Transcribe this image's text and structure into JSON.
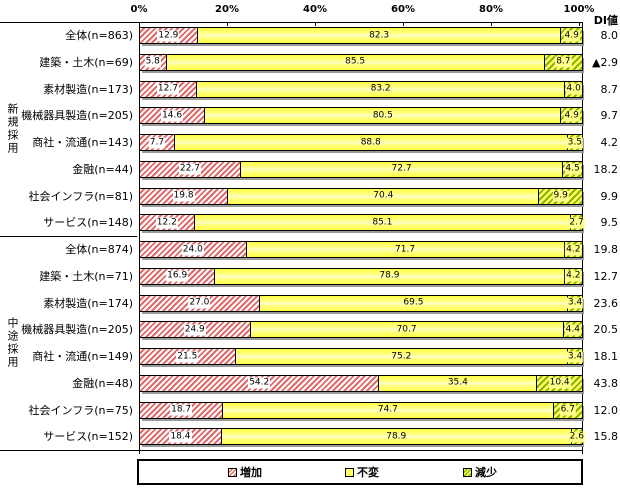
{
  "axis": {
    "ticks": [
      "0%",
      "20%",
      "40%",
      "60%",
      "80%",
      "100%"
    ],
    "di_header": "DI値"
  },
  "legend": {
    "items": [
      {
        "label": "増加",
        "swatch": "increase-hatch-pink"
      },
      {
        "label": "不変",
        "swatch": "unchanged-solid-yellow"
      },
      {
        "label": "減少",
        "swatch": "decrease-hatch-green"
      }
    ]
  },
  "colors": {
    "increase_hatch": "#e06a6a",
    "unchanged_fill": "#ffff66",
    "decrease_hatch": "#88b300",
    "bar_border": "#000000",
    "shadow": "#9a9a9a"
  },
  "groups": [
    {
      "label": "新規採用",
      "rows": [
        {
          "label": "全体(n=863)",
          "increase": 12.9,
          "unchanged": 82.3,
          "decrease": 4.9,
          "di": "8.0"
        },
        {
          "label": "建築・土木(n=69)",
          "increase": 5.8,
          "unchanged": 85.5,
          "decrease": 8.7,
          "di": "▲2.9"
        },
        {
          "label": "素材製造(n=173)",
          "increase": 12.7,
          "unchanged": 83.2,
          "decrease": 4.0,
          "di": "8.7"
        },
        {
          "label": "機械器具製造(n=205)",
          "increase": 14.6,
          "unchanged": 80.5,
          "decrease": 4.9,
          "di": "9.7"
        },
        {
          "label": "商社・流通(n=143)",
          "increase": 7.7,
          "unchanged": 88.8,
          "decrease": 3.5,
          "di": "4.2"
        },
        {
          "label": "金融(n=44)",
          "increase": 22.7,
          "unchanged": 72.7,
          "decrease": 4.5,
          "di": "18.2"
        },
        {
          "label": "社会インフラ(n=81)",
          "increase": 19.8,
          "unchanged": 70.4,
          "decrease": 9.9,
          "di": "9.9"
        },
        {
          "label": "サービス(n=148)",
          "increase": 12.2,
          "unchanged": 85.1,
          "decrease": 2.7,
          "di": "9.5"
        }
      ]
    },
    {
      "label": "中途採用",
      "rows": [
        {
          "label": "全体(n=874)",
          "increase": 24.0,
          "unchanged": 71.7,
          "decrease": 4.2,
          "di": "19.8"
        },
        {
          "label": "建築・土木(n=71)",
          "increase": 16.9,
          "unchanged": 78.9,
          "decrease": 4.2,
          "di": "12.7"
        },
        {
          "label": "素材製造(n=174)",
          "increase": 27.0,
          "unchanged": 69.5,
          "decrease": 3.4,
          "di": "23.6"
        },
        {
          "label": "機械器具製造(n=205)",
          "increase": 24.9,
          "unchanged": 70.7,
          "decrease": 4.4,
          "di": "20.5"
        },
        {
          "label": "商社・流通(n=149)",
          "increase": 21.5,
          "unchanged": 75.2,
          "decrease": 3.4,
          "di": "18.1"
        },
        {
          "label": "金融(n=48)",
          "increase": 54.2,
          "unchanged": 35.4,
          "decrease": 10.4,
          "di": "43.8"
        },
        {
          "label": "社会インフラ(n=75)",
          "increase": 18.7,
          "unchanged": 74.7,
          "decrease": 6.7,
          "di": "12.0"
        },
        {
          "label": "サービス(n=152)",
          "increase": 18.4,
          "unchanged": 78.9,
          "decrease": 2.6,
          "di": "15.8"
        }
      ]
    }
  ],
  "chart_data": {
    "type": "bar",
    "orientation": "horizontal",
    "stacked": true,
    "unit": "%",
    "xlim": [
      0,
      100
    ],
    "x_ticks": [
      0,
      20,
      40,
      60,
      80,
      100
    ],
    "grid": false,
    "legend_position": "bottom",
    "group_labels": [
      "新規採用",
      "中途採用"
    ],
    "categories": [
      "新規採用:全体(n=863)",
      "新規採用:建築・土木(n=69)",
      "新規採用:素材製造(n=173)",
      "新規採用:機械器具製造(n=205)",
      "新規採用:商社・流通(n=143)",
      "新規採用:金融(n=44)",
      "新規採用:社会インフラ(n=81)",
      "新規採用:サービス(n=148)",
      "中途採用:全体(n=874)",
      "中途採用:建築・土木(n=71)",
      "中途採用:素材製造(n=174)",
      "中途採用:機械器具製造(n=205)",
      "中途採用:商社・流通(n=149)",
      "中途採用:金融(n=48)",
      "中途採用:社会インフラ(n=75)",
      "中途採用:サービス(n=152)"
    ],
    "series": [
      {
        "name": "増加",
        "values": [
          12.9,
          5.8,
          12.7,
          14.6,
          7.7,
          22.7,
          19.8,
          12.2,
          24.0,
          16.9,
          27.0,
          24.9,
          21.5,
          54.2,
          18.7,
          18.4
        ]
      },
      {
        "name": "不変",
        "values": [
          82.3,
          85.5,
          83.2,
          80.5,
          88.8,
          72.7,
          70.4,
          85.1,
          71.7,
          78.9,
          69.5,
          70.7,
          75.2,
          35.4,
          74.7,
          78.9
        ]
      },
      {
        "name": "減少",
        "values": [
          4.9,
          8.7,
          4.0,
          4.9,
          3.5,
          4.5,
          9.9,
          2.7,
          4.2,
          4.2,
          3.4,
          4.4,
          3.4,
          10.4,
          6.7,
          2.6
        ]
      }
    ],
    "di_label": "DI値",
    "di_values": [
      8.0,
      -2.9,
      8.7,
      9.7,
      4.2,
      18.2,
      9.9,
      9.5,
      19.8,
      12.7,
      23.6,
      20.5,
      18.1,
      43.8,
      12.0,
      15.8
    ]
  }
}
